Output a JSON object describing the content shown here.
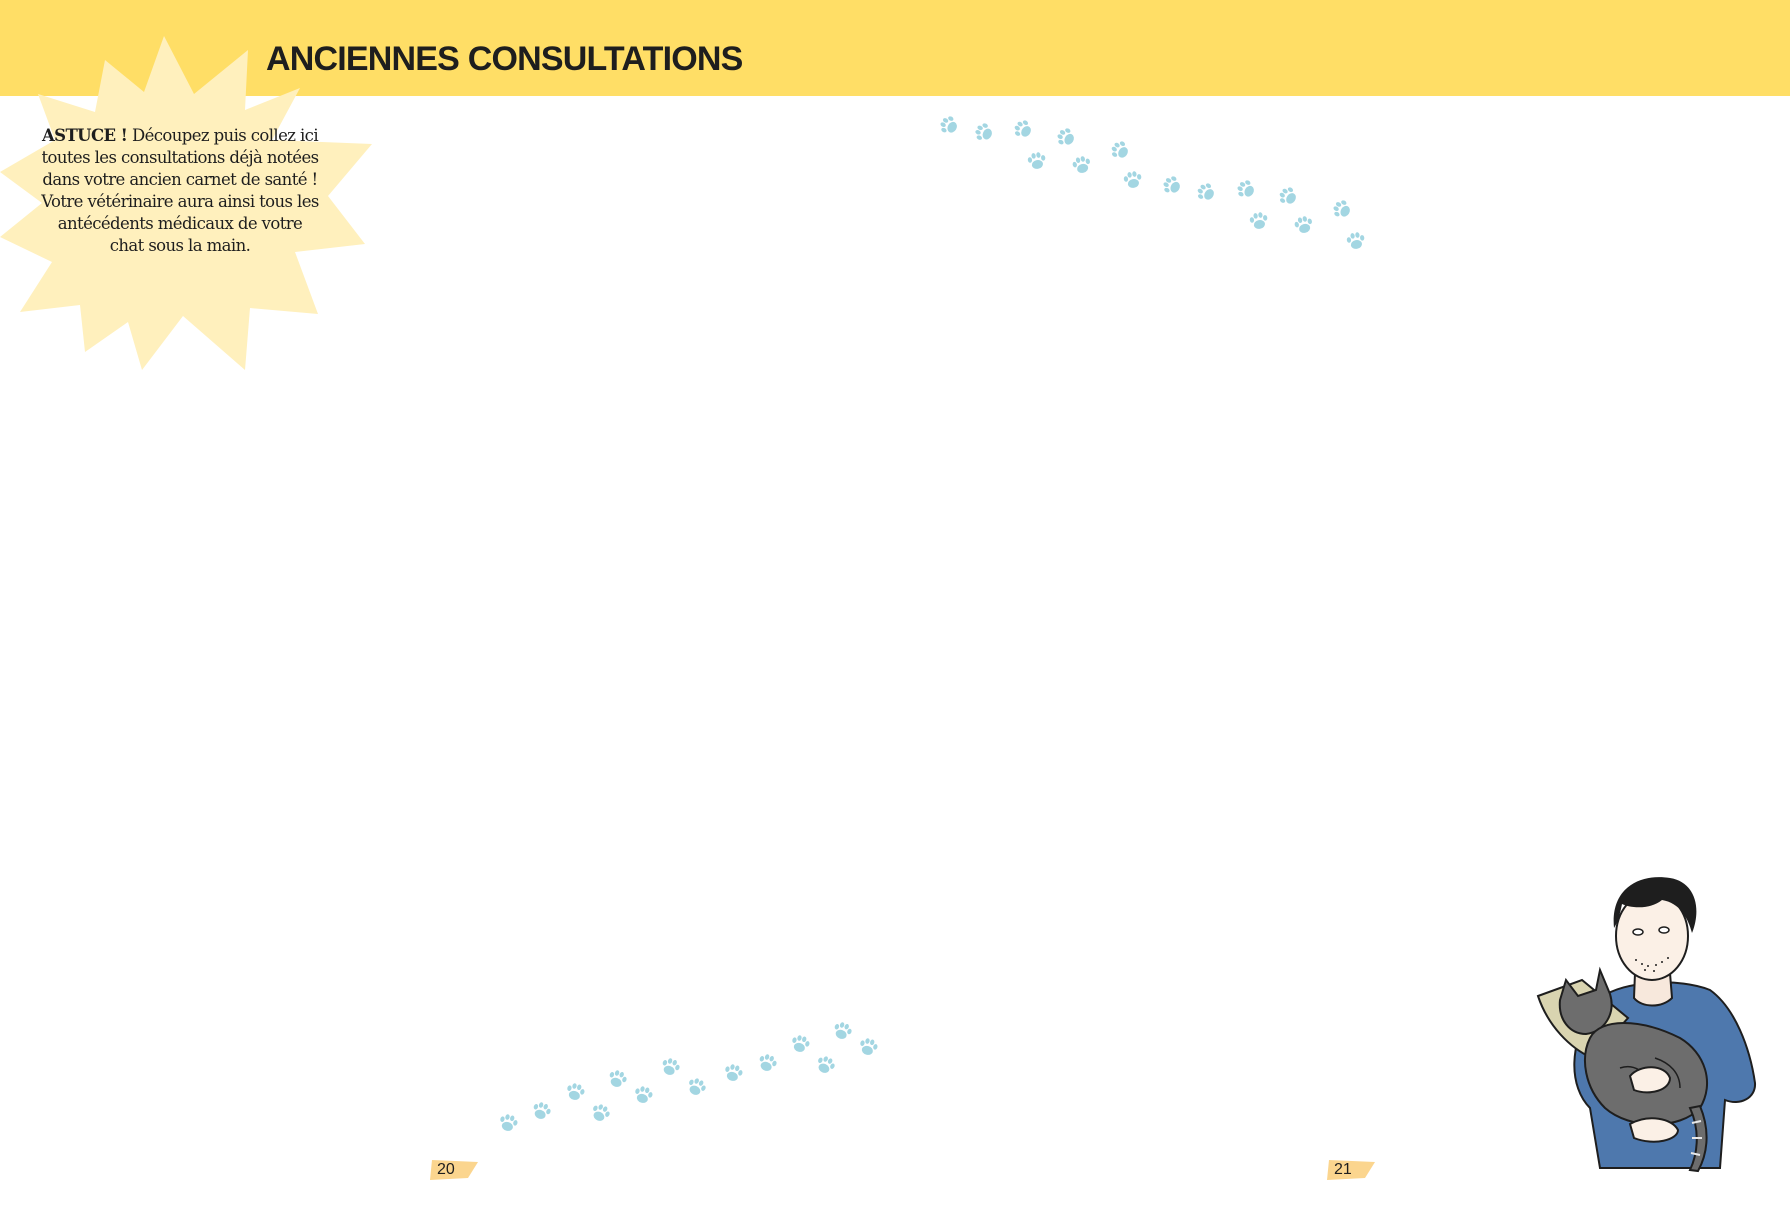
{
  "header": {
    "title": "ANCIENNES CONSULTATIONS",
    "band_color": "#ffde66"
  },
  "tip": {
    "label": "ASTUCE !",
    "text": "Découpez puis collez ici toutes les consultations déjà notées dans votre ancien carnet de santé ! Votre vétérinaire aura ainsi tous les antécédents médicaux de votre chat sous la main.",
    "burst_color": "#fff0bd"
  },
  "decorations": {
    "paw_color": "#a3d6e2",
    "paw_icon": "paw-print-icon",
    "illustration": "man-holding-cat-with-cone-illustration"
  },
  "footer": {
    "left_page_number": "20",
    "right_page_number": "21",
    "tab_color": "#fbd58e"
  }
}
